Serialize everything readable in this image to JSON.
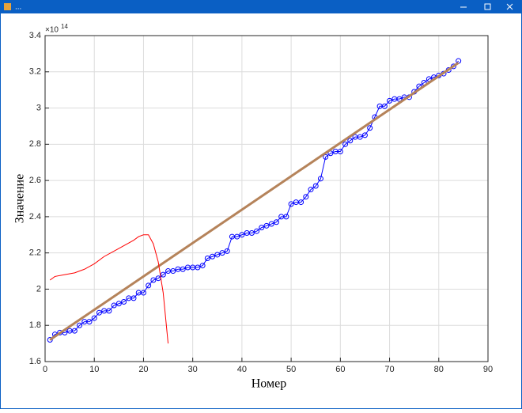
{
  "window": {
    "title": "..."
  },
  "chart_data": {
    "type": "line",
    "x_label": "Номер",
    "y_label": "Значение",
    "y_multiplier": {
      "base": "×10",
      "power": "14"
    },
    "xlim": [
      0,
      90
    ],
    "xticks": [
      0,
      10,
      20,
      30,
      40,
      50,
      60,
      70,
      80,
      90
    ],
    "ylim": [
      1.6,
      3.4
    ],
    "yticks": [
      1.6,
      1.8,
      2,
      2.2,
      2.4,
      2.6,
      2.8,
      3,
      3.2,
      3.4
    ],
    "grid": true,
    "series": [
      {
        "color": "#0000ff",
        "marker": "circle",
        "x": [
          1,
          2,
          3,
          4,
          5,
          6,
          7,
          8,
          9,
          10,
          11,
          12,
          13,
          14,
          15,
          16,
          17,
          18,
          19,
          20,
          21,
          22,
          23,
          24,
          25,
          26,
          27,
          28,
          29,
          30,
          31,
          32,
          33,
          34,
          35,
          36,
          37,
          38,
          39,
          40,
          41,
          42,
          43,
          44,
          45,
          46,
          47,
          48,
          49,
          50,
          51,
          52,
          53,
          54,
          55,
          56,
          57,
          58,
          59,
          60,
          61,
          62,
          63,
          64,
          65,
          66,
          67,
          68,
          69,
          70,
          71,
          72,
          73,
          74,
          75,
          76,
          77,
          78,
          79,
          80,
          81,
          82,
          83,
          84
        ],
        "values": [
          1.72,
          1.75,
          1.76,
          1.76,
          1.77,
          1.77,
          1.8,
          1.82,
          1.82,
          1.84,
          1.87,
          1.88,
          1.88,
          1.91,
          1.92,
          1.93,
          1.95,
          1.95,
          1.98,
          1.98,
          2.02,
          2.05,
          2.06,
          2.08,
          2.1,
          2.1,
          2.11,
          2.11,
          2.12,
          2.12,
          2.12,
          2.13,
          2.17,
          2.18,
          2.19,
          2.2,
          2.21,
          2.29,
          2.29,
          2.3,
          2.31,
          2.31,
          2.32,
          2.34,
          2.35,
          2.36,
          2.37,
          2.4,
          2.4,
          2.47,
          2.48,
          2.48,
          2.51,
          2.55,
          2.57,
          2.61,
          2.73,
          2.75,
          2.76,
          2.76,
          2.8,
          2.82,
          2.84,
          2.84,
          2.85,
          2.89,
          2.95,
          3.01,
          3.01,
          3.04,
          3.05,
          3.05,
          3.06,
          3.06,
          3.09,
          3.12,
          3.14,
          3.16,
          3.17,
          3.18,
          3.19,
          3.21,
          3.23,
          3.26
        ]
      },
      {
        "color": "#b5835a",
        "x": [
          1,
          84
        ],
        "values": [
          1.72,
          3.25
        ]
      },
      {
        "color": "#ff0000",
        "x": [
          1,
          2,
          4,
          6,
          8,
          10,
          12,
          14,
          16,
          18,
          19,
          20,
          21,
          22,
          23,
          24,
          25
        ],
        "values": [
          2.05,
          2.07,
          2.08,
          2.09,
          2.11,
          2.14,
          2.18,
          2.21,
          2.24,
          2.27,
          2.29,
          2.3,
          2.3,
          2.25,
          2.15,
          1.98,
          1.7
        ]
      }
    ]
  }
}
